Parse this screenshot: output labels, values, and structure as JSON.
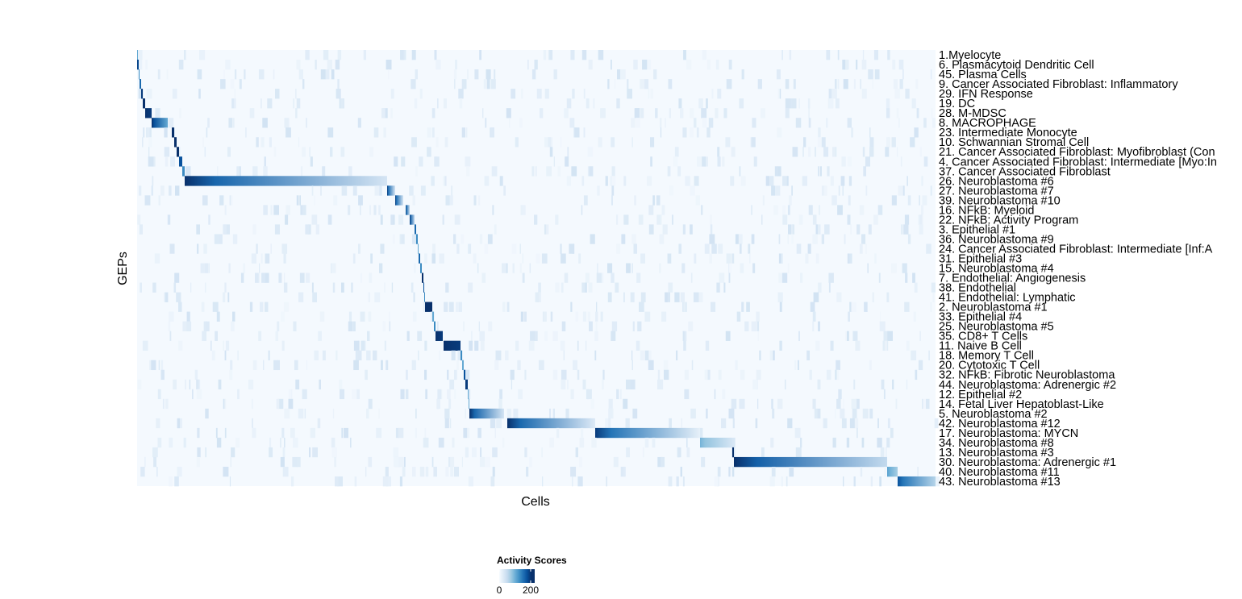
{
  "chart_data": {
    "type": "heatmap",
    "xlabel": "Cells",
    "ylabel": "GEPs",
    "grid": false,
    "legend": {
      "title": "Activity Scores",
      "placement": "bottom",
      "ticks": [
        0,
        200
      ],
      "range": [
        0,
        230
      ],
      "colors": [
        "#f7fbff",
        "#deebf7",
        "#c6dbef",
        "#9ecae1",
        "#6baed6",
        "#4292c6",
        "#2171b5",
        "#08519c",
        "#08306b"
      ]
    },
    "cell_count": 9900,
    "rows": [
      {
        "label": "1.Myelocyte",
        "segment": [
          0,
          10,
          120,
          120
        ]
      },
      {
        "label": "6. Plasmacytoid Dendritic Cell",
        "segment": [
          0,
          20,
          220,
          200
        ]
      },
      {
        "label": "45. Plasma Cells",
        "segment": [
          20,
          30,
          150,
          150
        ]
      },
      {
        "label": "9. Cancer Associated Fibroblast: Inflammatory",
        "segment": [
          30,
          50,
          180,
          180
        ]
      },
      {
        "label": "29. IFN Response",
        "segment": [
          50,
          70,
          220,
          220
        ]
      },
      {
        "label": "19. DC",
        "segment": [
          70,
          100,
          230,
          230
        ]
      },
      {
        "label": "28. M-MDSC",
        "segment": [
          100,
          180,
          230,
          220
        ]
      },
      {
        "label": "8. MACROPHAGE",
        "segment": [
          180,
          380,
          230,
          120
        ]
      },
      {
        "label": "23. Intermediate Monocyte",
        "segment": [
          430,
          460,
          230,
          230
        ]
      },
      {
        "label": "10. Schwannian Stromal Cell",
        "segment": [
          460,
          490,
          230,
          230
        ]
      },
      {
        "label": "21. Cancer Associated Fibroblast: Myofibroblast (Con",
        "segment": [
          490,
          520,
          230,
          230
        ]
      },
      {
        "label": "4. Cancer Associated Fibroblast: Intermediate [Myo:In",
        "segment": [
          520,
          560,
          200,
          200
        ]
      },
      {
        "label": "37. Cancer Associated Fibroblast",
        "segment": [
          560,
          590,
          150,
          150
        ]
      },
      {
        "label": "26. Neuroblastoma #6",
        "segment": [
          590,
          3100,
          230,
          40
        ]
      },
      {
        "label": "27. Neuroblastoma #7",
        "segment": [
          3100,
          3200,
          220,
          40
        ]
      },
      {
        "label": "39. Neuroblastoma #10",
        "segment": [
          3200,
          3300,
          220,
          40
        ]
      },
      {
        "label": "16. NFkB: Myeloid",
        "segment": [
          3330,
          3380,
          220,
          60
        ]
      },
      {
        "label": "22. NFkB: Activity Program",
        "segment": [
          3380,
          3440,
          230,
          60
        ]
      },
      {
        "label": "3. Epithelial #1",
        "segment": [
          3440,
          3460,
          180,
          180
        ]
      },
      {
        "label": "36. Neuroblastoma #9",
        "segment": [
          3460,
          3480,
          150,
          150
        ]
      },
      {
        "label": "24. Cancer Associated Fibroblast: Intermediate [Inf:A",
        "segment": [
          3480,
          3490,
          120,
          120
        ]
      },
      {
        "label": "31. Epithelial #3",
        "segment": [
          3490,
          3510,
          180,
          180
        ]
      },
      {
        "label": "15. Neuroblastoma #4",
        "segment": [
          3510,
          3530,
          150,
          150
        ]
      },
      {
        "label": "7. Endothelial: Angiogenesis",
        "segment": [
          3530,
          3550,
          230,
          230
        ]
      },
      {
        "label": "38. Endothelial",
        "segment": [
          3550,
          3560,
          200,
          200
        ]
      },
      {
        "label": "41. Endothelial: Lymphatic",
        "segment": [
          3560,
          3570,
          150,
          150
        ]
      },
      {
        "label": "2. Neuroblastoma #1",
        "segment": [
          3570,
          3660,
          230,
          230
        ]
      },
      {
        "label": "33. Epithelial #4",
        "segment": [
          3660,
          3680,
          120,
          120
        ]
      },
      {
        "label": "25. Neuroblastoma #5",
        "segment": [
          3680,
          3700,
          150,
          150
        ]
      },
      {
        "label": "35. CD8+ T Cells",
        "segment": [
          3700,
          3790,
          230,
          220
        ]
      },
      {
        "label": "11. Naive B Cell",
        "segment": [
          3800,
          4010,
          230,
          220
        ]
      },
      {
        "label": "18. Memory T Cell",
        "segment": [
          4010,
          4030,
          150,
          150
        ]
      },
      {
        "label": "20. Cytotoxic T Cell",
        "segment": [
          4030,
          4050,
          120,
          120
        ]
      },
      {
        "label": "32. NFkB: Fibrotic Neuroblastoma",
        "segment": [
          4050,
          4070,
          200,
          200
        ]
      },
      {
        "label": "44. Neuroblastoma: Adrenergic #2",
        "segment": [
          4070,
          4100,
          220,
          220
        ]
      },
      {
        "label": "12. Epithelial #2",
        "segment": [
          4100,
          4110,
          120,
          120
        ]
      },
      {
        "label": "14. Fetal Liver Hepatoblast-Like",
        "segment": [
          4110,
          4120,
          120,
          120
        ]
      },
      {
        "label": "5. Neuroblastoma #2",
        "segment": [
          4120,
          4550,
          230,
          40
        ]
      },
      {
        "label": "42. Neuroblastoma #12",
        "segment": [
          4590,
          5680,
          230,
          30
        ]
      },
      {
        "label": "17. Neuroblastoma: MYCN",
        "segment": [
          5680,
          6980,
          220,
          20
        ]
      },
      {
        "label": "34. Neuroblastoma #8",
        "segment": [
          6980,
          7380,
          110,
          40
        ]
      },
      {
        "label": "13. Neuroblastoma #3",
        "segment": [
          7380,
          7400,
          230,
          230
        ]
      },
      {
        "label": "30. Neuroblastoma: Adrenergic #1",
        "segment": [
          7400,
          9300,
          230,
          60
        ]
      },
      {
        "label": "40. Neuroblastoma #11",
        "segment": [
          9300,
          9430,
          130,
          80
        ]
      },
      {
        "label": "43. Neuroblastoma #13",
        "segment": [
          9430,
          9900,
          200,
          70
        ]
      }
    ]
  }
}
